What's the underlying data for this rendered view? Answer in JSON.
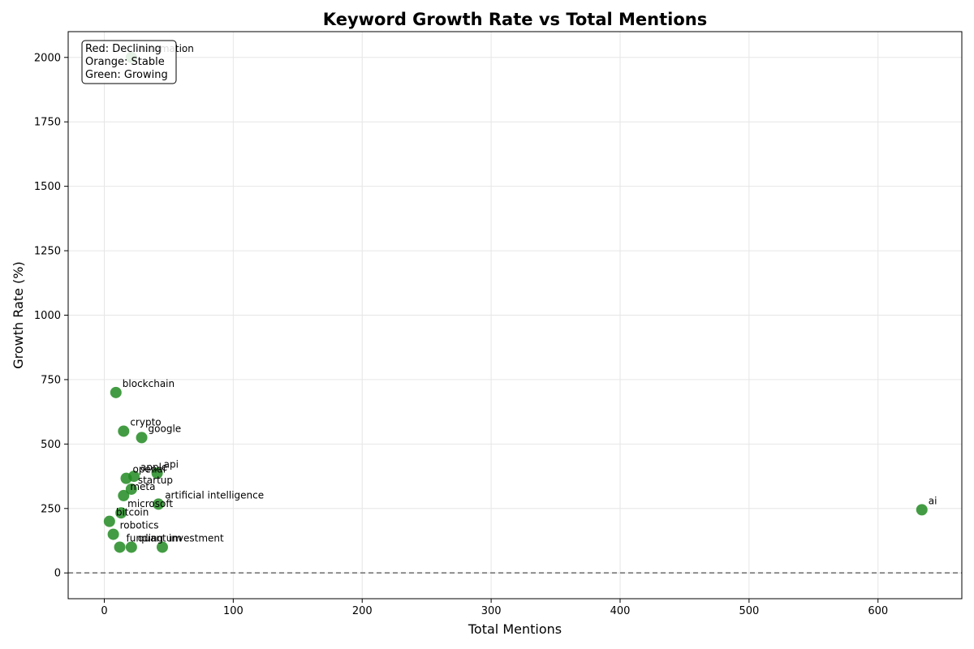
{
  "chart_data": {
    "type": "scatter",
    "title": "Keyword Growth Rate vs Total Mentions",
    "xlabel": "Total Mentions",
    "ylabel": "Growth Rate (%)",
    "xlim": [
      -28,
      665
    ],
    "ylim": [
      -100,
      2100
    ],
    "xticks": [
      0,
      100,
      200,
      300,
      400,
      500,
      600
    ],
    "yticks": [
      0,
      250,
      500,
      750,
      1000,
      1250,
      1500,
      1750,
      2000
    ],
    "grid": true,
    "reference_line_y": 0,
    "legend_box": {
      "position": "top-left",
      "lines": [
        "Red: Declining",
        "Orange: Stable",
        "Green: Growing"
      ]
    },
    "colors": {
      "growing": "#228b22",
      "reference_line": "#777777",
      "grid": "#e6e6e6"
    },
    "points": [
      {
        "label": "ai",
        "x": 634,
        "y": 245,
        "status": "growing"
      },
      {
        "label": "blockchain",
        "x": 9,
        "y": 700,
        "status": "growing"
      },
      {
        "label": "crypto",
        "x": 15,
        "y": 550,
        "status": "growing"
      },
      {
        "label": "google",
        "x": 29,
        "y": 525,
        "status": "growing"
      },
      {
        "label": "apple",
        "x": 23,
        "y": 375,
        "status": "growing"
      },
      {
        "label": "api",
        "x": 41,
        "y": 387,
        "status": "growing"
      },
      {
        "label": "openai",
        "x": 17,
        "y": 367,
        "status": "growing"
      },
      {
        "label": "startup",
        "x": 21,
        "y": 325,
        "status": "growing"
      },
      {
        "label": "meta",
        "x": 15,
        "y": 300,
        "status": "growing"
      },
      {
        "label": "artificial intelligence",
        "x": 42,
        "y": 267,
        "status": "growing"
      },
      {
        "label": "microsoft",
        "x": 13,
        "y": 233,
        "status": "growing"
      },
      {
        "label": "bitcoin",
        "x": 4,
        "y": 200,
        "status": "growing"
      },
      {
        "label": "robotics",
        "x": 7,
        "y": 150,
        "status": "growing"
      },
      {
        "label": "funding",
        "x": 12,
        "y": 100,
        "status": "growing"
      },
      {
        "label": "quantum",
        "x": 21,
        "y": 100,
        "status": "growing"
      },
      {
        "label": "investment",
        "x": 45,
        "y": 100,
        "status": "growing"
      },
      {
        "label": "automation",
        "x": 21,
        "y": 2000,
        "status": "growing"
      }
    ]
  }
}
